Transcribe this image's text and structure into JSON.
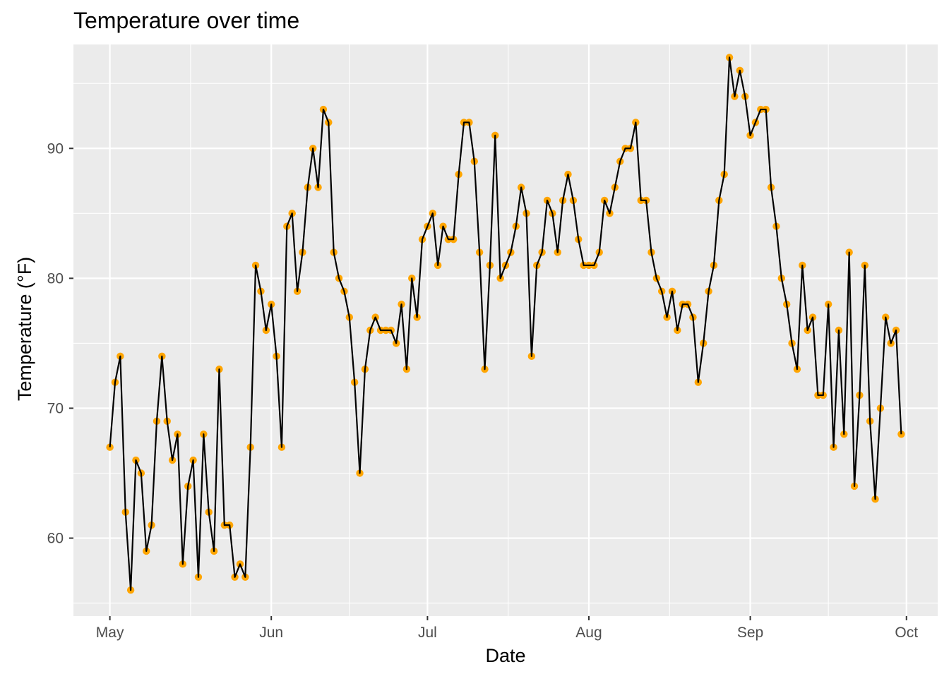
{
  "chart_data": {
    "type": "line",
    "title": "Temperature over time",
    "xlabel": "Date",
    "ylabel": "Temperature (°F)",
    "x_tick_labels": [
      "May",
      "Jun",
      "Jul",
      "Aug",
      "Sep",
      "Oct"
    ],
    "x_tick_dates": [
      "1973-05-01",
      "1973-06-01",
      "1973-07-01",
      "1973-08-01",
      "1973-09-01",
      "1973-10-01"
    ],
    "y_ticks": [
      60,
      70,
      80,
      90
    ],
    "ylim": [
      54,
      98
    ],
    "xlim": [
      "1973-04-24",
      "1973-10-07"
    ],
    "grid": true,
    "legend": "none",
    "point_color": "#FFA500",
    "line_color": "#000000",
    "panel_background": "#EBEBEB",
    "series": [
      {
        "x": [
          "1973-05-01",
          "1973-05-02",
          "1973-05-03",
          "1973-05-04",
          "1973-05-05",
          "1973-05-06",
          "1973-05-07",
          "1973-05-08",
          "1973-05-09",
          "1973-05-10",
          "1973-05-11",
          "1973-05-12",
          "1973-05-13",
          "1973-05-14",
          "1973-05-15",
          "1973-05-16",
          "1973-05-17",
          "1973-05-18",
          "1973-05-19",
          "1973-05-20",
          "1973-05-21",
          "1973-05-22",
          "1973-05-23",
          "1973-05-24",
          "1973-05-25",
          "1973-05-26",
          "1973-05-27",
          "1973-05-28",
          "1973-05-29",
          "1973-05-30",
          "1973-05-31",
          "1973-06-01",
          "1973-06-02",
          "1973-06-03",
          "1973-06-04",
          "1973-06-05",
          "1973-06-06",
          "1973-06-07",
          "1973-06-08",
          "1973-06-09",
          "1973-06-10",
          "1973-06-11",
          "1973-06-12",
          "1973-06-13",
          "1973-06-14",
          "1973-06-15",
          "1973-06-16",
          "1973-06-17",
          "1973-06-18",
          "1973-06-19",
          "1973-06-20",
          "1973-06-21",
          "1973-06-22",
          "1973-06-23",
          "1973-06-24",
          "1973-06-25",
          "1973-06-26",
          "1973-06-27",
          "1973-06-28",
          "1973-06-29",
          "1973-06-30",
          "1973-07-01",
          "1973-07-02",
          "1973-07-03",
          "1973-07-04",
          "1973-07-05",
          "1973-07-06",
          "1973-07-07",
          "1973-07-08",
          "1973-07-09",
          "1973-07-10",
          "1973-07-11",
          "1973-07-12",
          "1973-07-13",
          "1973-07-14",
          "1973-07-15",
          "1973-07-16",
          "1973-07-17",
          "1973-07-18",
          "1973-07-19",
          "1973-07-20",
          "1973-07-21",
          "1973-07-22",
          "1973-07-23",
          "1973-07-24",
          "1973-07-25",
          "1973-07-26",
          "1973-07-27",
          "1973-07-28",
          "1973-07-29",
          "1973-07-30",
          "1973-07-31",
          "1973-08-01",
          "1973-08-02",
          "1973-08-03",
          "1973-08-04",
          "1973-08-05",
          "1973-08-06",
          "1973-08-07",
          "1973-08-08",
          "1973-08-09",
          "1973-08-10",
          "1973-08-11",
          "1973-08-12",
          "1973-08-13",
          "1973-08-14",
          "1973-08-15",
          "1973-08-16",
          "1973-08-17",
          "1973-08-18",
          "1973-08-19",
          "1973-08-20",
          "1973-08-21",
          "1973-08-22",
          "1973-08-23",
          "1973-08-24",
          "1973-08-25",
          "1973-08-26",
          "1973-08-27",
          "1973-08-28",
          "1973-08-29",
          "1973-08-30",
          "1973-08-31",
          "1973-09-01",
          "1973-09-02",
          "1973-09-03",
          "1973-09-04",
          "1973-09-05",
          "1973-09-06",
          "1973-09-07",
          "1973-09-08",
          "1973-09-09",
          "1973-09-10",
          "1973-09-11",
          "1973-09-12",
          "1973-09-13",
          "1973-09-14",
          "1973-09-15",
          "1973-09-16",
          "1973-09-17",
          "1973-09-18",
          "1973-09-19",
          "1973-09-20",
          "1973-09-21",
          "1973-09-22",
          "1973-09-23",
          "1973-09-24",
          "1973-09-25",
          "1973-09-26",
          "1973-09-27",
          "1973-09-28",
          "1973-09-29",
          "1973-09-30"
        ],
        "y": [
          67,
          72,
          74,
          62,
          56,
          66,
          65,
          59,
          61,
          69,
          74,
          69,
          66,
          68,
          58,
          64,
          66,
          57,
          68,
          62,
          59,
          73,
          61,
          61,
          57,
          58,
          57,
          67,
          81,
          79,
          76,
          78,
          74,
          67,
          84,
          85,
          79,
          82,
          87,
          90,
          87,
          93,
          92,
          82,
          80,
          79,
          77,
          72,
          65,
          73,
          76,
          77,
          76,
          76,
          76,
          75,
          78,
          73,
          80,
          77,
          83,
          84,
          85,
          81,
          84,
          83,
          83,
          88,
          92,
          92,
          89,
          82,
          73,
          81,
          91,
          80,
          81,
          82,
          84,
          87,
          85,
          74,
          81,
          82,
          86,
          85,
          82,
          86,
          88,
          86,
          83,
          81,
          81,
          81,
          82,
          86,
          85,
          87,
          89,
          90,
          90,
          92,
          86,
          86,
          82,
          80,
          79,
          77,
          79,
          76,
          78,
          78,
          77,
          72,
          75,
          79,
          81,
          86,
          88,
          97,
          94,
          96,
          94,
          91,
          92,
          93,
          93,
          87,
          84,
          80,
          78,
          75,
          73,
          81,
          76,
          77,
          71,
          71,
          78,
          67,
          76,
          68,
          82,
          64,
          71,
          81,
          69,
          63,
          70,
          77,
          75,
          76,
          68
        ]
      }
    ]
  }
}
